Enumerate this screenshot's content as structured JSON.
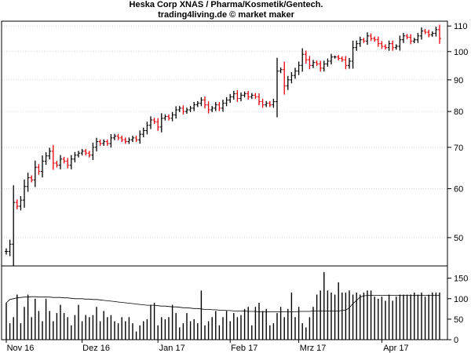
{
  "title": "Heska Corp XNAS / Pharma/Kosmetik/Gentech.",
  "subtitle": "trading4living.de © market maker",
  "colors": {
    "up": "#000000",
    "down": "#e8000b",
    "frame": "#000000",
    "avg": "#000000"
  },
  "chart_data": [
    {
      "type": "ohlc",
      "title": "Heska Corp XNAS / Pharma/Kosmetik/Gentech.",
      "yscale": "log",
      "ylim": [
        45,
        112
      ],
      "yticks": [
        50,
        60,
        70,
        80,
        90,
        100,
        110
      ],
      "x": [
        "2016-11-01",
        "2016-11-02",
        "2016-11-03",
        "2016-11-04",
        "2016-11-07",
        "2016-11-08",
        "2016-11-09",
        "2016-11-10",
        "2016-11-11",
        "2016-11-14",
        "2016-11-15",
        "2016-11-16",
        "2016-11-17",
        "2016-11-18",
        "2016-11-21",
        "2016-11-22",
        "2016-11-23",
        "2016-11-25",
        "2016-11-28",
        "2016-11-29",
        "2016-11-30",
        "2016-12-01",
        "2016-12-02",
        "2016-12-05",
        "2016-12-06",
        "2016-12-07",
        "2016-12-08",
        "2016-12-09",
        "2016-12-12",
        "2016-12-13",
        "2016-12-14",
        "2016-12-15",
        "2016-12-16",
        "2016-12-19",
        "2016-12-20",
        "2016-12-21",
        "2016-12-22",
        "2016-12-23",
        "2016-12-27",
        "2016-12-28",
        "2016-12-29",
        "2016-12-30",
        "2017-01-03",
        "2017-01-04",
        "2017-01-05",
        "2017-01-06",
        "2017-01-09",
        "2017-01-10",
        "2017-01-11",
        "2017-01-12",
        "2017-01-13",
        "2017-01-17",
        "2017-01-18",
        "2017-01-19",
        "2017-01-20",
        "2017-01-23",
        "2017-01-24",
        "2017-01-25",
        "2017-01-26",
        "2017-01-27",
        "2017-01-30",
        "2017-01-31",
        "2017-02-01",
        "2017-02-02",
        "2017-02-03",
        "2017-02-06",
        "2017-02-07",
        "2017-02-08",
        "2017-02-09",
        "2017-02-10",
        "2017-02-13",
        "2017-02-14",
        "2017-02-15",
        "2017-02-16",
        "2017-02-17",
        "2017-02-21",
        "2017-02-22",
        "2017-02-23",
        "2017-02-24",
        "2017-02-27",
        "2017-02-28",
        "2017-03-01",
        "2017-03-02",
        "2017-03-03",
        "2017-03-06",
        "2017-03-07",
        "2017-03-08",
        "2017-03-09",
        "2017-03-10",
        "2017-03-13",
        "2017-03-14",
        "2017-03-15",
        "2017-03-16",
        "2017-03-17",
        "2017-03-20",
        "2017-03-21",
        "2017-03-22",
        "2017-03-23",
        "2017-03-24",
        "2017-03-27",
        "2017-03-28",
        "2017-03-29",
        "2017-03-30",
        "2017-03-31",
        "2017-04-03",
        "2017-04-04",
        "2017-04-05",
        "2017-04-06",
        "2017-04-07",
        "2017-04-10",
        "2017-04-11",
        "2017-04-12",
        "2017-04-13",
        "2017-04-17",
        "2017-04-18",
        "2017-04-19",
        "2017-04-20",
        "2017-04-21",
        "2017-04-24",
        "2017-04-25",
        "2017-04-26"
      ],
      "close": [
        47.5,
        48.8,
        57.0,
        56.2,
        57.5,
        60.5,
        62.5,
        62.0,
        65.0,
        64.0,
        66.5,
        67.8,
        69.0,
        66.0,
        65.5,
        67.0,
        66.5,
        65.5,
        67.0,
        68.0,
        68.5,
        69.0,
        68.5,
        68.0,
        70.0,
        71.5,
        71.0,
        71.5,
        71.0,
        72.5,
        73.0,
        72.5,
        72.0,
        71.5,
        72.0,
        72.5,
        72.0,
        73.5,
        74.5,
        76.0,
        77.5,
        77.0,
        75.5,
        78.0,
        78.5,
        78.0,
        79.0,
        80.5,
        81.0,
        80.0,
        80.5,
        81.0,
        82.0,
        82.5,
        83.5,
        82.0,
        80.5,
        81.0,
        82.0,
        81.0,
        82.5,
        83.5,
        84.5,
        85.5,
        84.0,
        85.0,
        85.5,
        84.5,
        85.0,
        84.5,
        83.0,
        82.0,
        82.5,
        82.0,
        83.0,
        93.0,
        93.5,
        88.0,
        90.0,
        91.5,
        93.0,
        95.0,
        99.0,
        97.0,
        95.0,
        96.0,
        95.5,
        94.0,
        95.5,
        96.5,
        98.0,
        98.0,
        97.5,
        97.0,
        95.0,
        96.5,
        101.5,
        103.0,
        104.5,
        104.0,
        106.0,
        105.0,
        104.5,
        103.0,
        102.0,
        101.5,
        103.0,
        101.5,
        102.0,
        104.5,
        106.0,
        105.5,
        104.0,
        104.5,
        106.0,
        108.0,
        107.5,
        106.5,
        107.0,
        108.5,
        105.0
      ],
      "volume": [
        90,
        40,
        55,
        110,
        40,
        80,
        110,
        55,
        100,
        70,
        45,
        100,
        70,
        45,
        65,
        85,
        65,
        55,
        35,
        60,
        85,
        45,
        60,
        55,
        60,
        80,
        45,
        70,
        55,
        60,
        45,
        40,
        55,
        45,
        55,
        40,
        20,
        35,
        45,
        50,
        85,
        90,
        35,
        55,
        50,
        55,
        85,
        65,
        30,
        40,
        65,
        45,
        50,
        40,
        120,
        35,
        45,
        55,
        70,
        35,
        55,
        70,
        45,
        65,
        55,
        60,
        75,
        80,
        35,
        80,
        90,
        70,
        75,
        35,
        40,
        65,
        80,
        55,
        75,
        115,
        55,
        80,
        40,
        30,
        55,
        80,
        110,
        120,
        165,
        120,
        115,
        110,
        140,
        115,
        115,
        120,
        110,
        115,
        110,
        115,
        120,
        120,
        105,
        100,
        105,
        95,
        110,
        95,
        105,
        110,
        110,
        110,
        110,
        115,
        110,
        115,
        105,
        110,
        115,
        115,
        115
      ],
      "avg_volume": [
        90,
        98,
        100,
        102,
        103,
        104,
        104,
        105,
        105,
        104,
        104,
        104,
        104,
        103,
        103,
        103,
        102,
        102,
        101,
        100,
        100,
        100,
        99,
        99,
        98,
        98,
        97,
        96,
        95,
        94,
        93,
        92,
        91,
        90,
        89,
        88,
        87,
        86,
        85,
        84,
        84,
        84,
        83,
        82,
        82,
        81,
        80,
        80,
        79,
        78,
        78,
        77,
        76,
        76,
        75,
        74,
        74,
        73,
        73,
        72,
        72,
        71,
        71,
        70,
        70,
        70,
        70,
        69,
        69,
        69,
        68,
        68,
        68,
        68,
        68,
        68,
        68,
        68,
        68,
        68,
        68,
        69,
        69,
        69,
        69,
        70,
        70,
        70,
        70,
        70,
        70,
        70,
        70,
        71,
        72,
        78,
        88,
        96,
        104,
        107,
        108,
        108,
        108,
        108,
        108,
        108,
        108,
        108,
        108,
        108,
        108,
        108,
        108,
        108,
        108,
        108,
        108,
        108,
        108,
        108,
        108
      ],
      "volume_ylim": [
        0,
        180
      ],
      "volume_yticks": [
        0,
        50,
        100,
        150
      ],
      "x_labels": [
        "Nov 16",
        "Dez 16",
        "Jan 17",
        "Feb 17",
        "Mrz 17",
        "Apr 17"
      ]
    }
  ]
}
